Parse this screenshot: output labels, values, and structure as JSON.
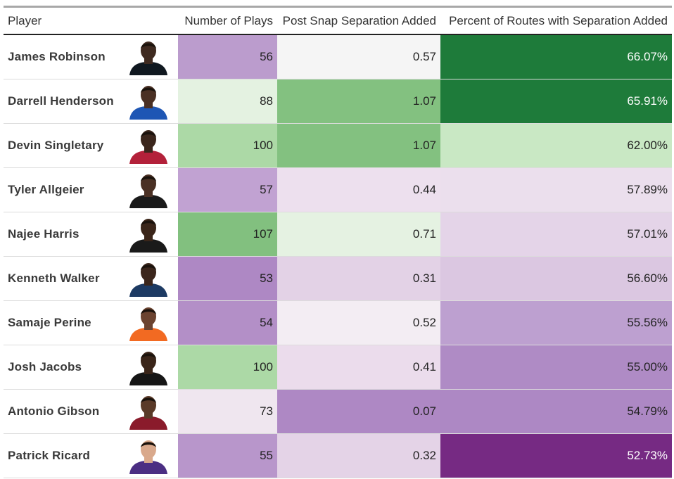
{
  "table": {
    "columns": [
      "Player",
      "Number of Plays",
      "Post Snap Separation Added",
      "Percent of Routes with Separation Added"
    ]
  },
  "chart_data": {
    "type": "table",
    "title": "",
    "columns": [
      "Player",
      "Number of Plays",
      "Post Snap Separation Added",
      "Percent of Routes with Separation Added"
    ],
    "rows": [
      {
        "player": "James Robinson",
        "plays": "56",
        "separation": "0.57",
        "percent": "66.07%",
        "plays_color": "#bb9ccd",
        "sep_color": "#f5f5f5",
        "pct_color": "#1e7b3a",
        "pct_light": true,
        "jersey": "#101820",
        "skin": "#3f2a20"
      },
      {
        "player": "Darrell Henderson",
        "plays": "88",
        "separation": "1.07",
        "percent": "65.91%",
        "plays_color": "#e4f2e1",
        "sep_color": "#83c180",
        "pct_color": "#1e7b3a",
        "pct_light": true,
        "jersey": "#1e56b4",
        "skin": "#4a3024"
      },
      {
        "player": "Devin Singletary",
        "plays": "100",
        "separation": "1.07",
        "percent": "62.00%",
        "plays_color": "#acd9a6",
        "sep_color": "#83c180",
        "pct_color": "#c9e8c4",
        "pct_light": false,
        "jersey": "#b3213a",
        "skin": "#3b261c"
      },
      {
        "player": "Tyler Allgeier",
        "plays": "57",
        "separation": "0.44",
        "percent": "57.89%",
        "plays_color": "#c1a2d2",
        "sep_color": "#ede0ee",
        "pct_color": "#ebdfed",
        "pct_light": false,
        "jersey": "#1a1a1a",
        "skin": "#4a3024"
      },
      {
        "player": "Najee Harris",
        "plays": "107",
        "separation": "0.71",
        "percent": "57.01%",
        "plays_color": "#82c07f",
        "sep_color": "#e5f2e2",
        "pct_color": "#e4d4e8",
        "pct_light": false,
        "jersey": "#1a1a1a",
        "skin": "#3a2519"
      },
      {
        "player": "Kenneth Walker",
        "plays": "53",
        "separation": "0.31",
        "percent": "56.60%",
        "plays_color": "#ae88c4",
        "sep_color": "#e3d2e6",
        "pct_color": "#dbc7e1",
        "pct_light": false,
        "jersey": "#1d3a63",
        "skin": "#3b261c"
      },
      {
        "player": "Samaje Perine",
        "plays": "54",
        "separation": "0.52",
        "percent": "55.56%",
        "plays_color": "#b38fc7",
        "sep_color": "#f3edf3",
        "pct_color": "#bda0d0",
        "pct_light": false,
        "jersey": "#f26a22",
        "skin": "#6b4330"
      },
      {
        "player": "Josh Jacobs",
        "plays": "100",
        "separation": "0.41",
        "percent": "55.00%",
        "plays_color": "#acd9a6",
        "sep_color": "#ebdcec",
        "pct_color": "#af8bc5",
        "pct_light": false,
        "jersey": "#161616",
        "skin": "#3a2519"
      },
      {
        "player": "Antonio Gibson",
        "plays": "73",
        "separation": "0.07",
        "percent": "54.79%",
        "plays_color": "#efe6ef",
        "sep_color": "#ae88c4",
        "pct_color": "#ad88c4",
        "pct_light": false,
        "jersey": "#8a1b2b",
        "skin": "#5a3a28"
      },
      {
        "player": "Patrick Ricard",
        "plays": "55",
        "separation": "0.32",
        "percent": "52.73%",
        "plays_color": "#b896cb",
        "sep_color": "#e4d3e7",
        "pct_color": "#762a83",
        "pct_light": true,
        "jersey": "#4b2e83",
        "skin": "#d9a98c"
      }
    ]
  }
}
